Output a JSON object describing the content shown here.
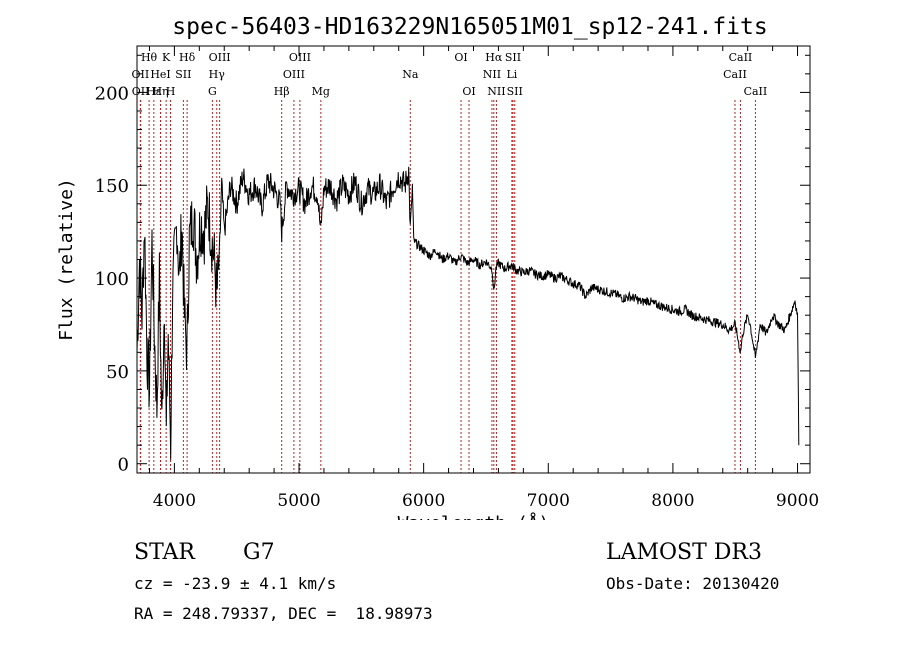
{
  "chart_data": {
    "type": "line",
    "title": "spec-56403-HD163229N165051M01_sp12-241.fits",
    "xlabel": "Wavelength (Å)",
    "ylabel": "Flux (relative)",
    "xlim": [
      3700,
      9100
    ],
    "ylim": [
      -5,
      225
    ],
    "x_ticks": [
      4000,
      5000,
      6000,
      7000,
      8000,
      9000
    ],
    "y_ticks": [
      0,
      50,
      100,
      150,
      200
    ],
    "grid": false,
    "line_color": "#000000",
    "marker_color": "#b22222",
    "series": [
      {
        "name": "spectrum",
        "points": [
          [
            3700,
            60
          ],
          [
            3720,
            110
          ],
          [
            3740,
            80
          ],
          [
            3760,
            130
          ],
          [
            3780,
            60
          ],
          [
            3800,
            40
          ],
          [
            3820,
            120
          ],
          [
            3840,
            70
          ],
          [
            3860,
            30
          ],
          [
            3880,
            100
          ],
          [
            3900,
            20
          ],
          [
            3920,
            90
          ],
          [
            3935,
            15
          ],
          [
            3950,
            70
          ],
          [
            3970,
            10
          ],
          [
            3985,
            90
          ],
          [
            4000,
            110
          ],
          [
            4020,
            130
          ],
          [
            4040,
            100
          ],
          [
            4060,
            130
          ],
          [
            4080,
            80
          ],
          [
            4101,
            60
          ],
          [
            4120,
            120
          ],
          [
            4150,
            135
          ],
          [
            4180,
            110
          ],
          [
            4210,
            130
          ],
          [
            4240,
            125
          ],
          [
            4270,
            140
          ],
          [
            4300,
            120
          ],
          [
            4320,
            110
          ],
          [
            4340,
            90
          ],
          [
            4360,
            110
          ],
          [
            4380,
            150
          ],
          [
            4400,
            125
          ],
          [
            4450,
            150
          ],
          [
            4500,
            140
          ],
          [
            4550,
            155
          ],
          [
            4600,
            145
          ],
          [
            4650,
            150
          ],
          [
            4700,
            138
          ],
          [
            4750,
            152
          ],
          [
            4800,
            148
          ],
          [
            4850,
            140
          ],
          [
            4861,
            125
          ],
          [
            4900,
            150
          ],
          [
            4950,
            145
          ],
          [
            5000,
            148
          ],
          [
            5050,
            140
          ],
          [
            5100,
            150
          ],
          [
            5150,
            145
          ],
          [
            5173,
            125
          ],
          [
            5200,
            148
          ],
          [
            5250,
            150
          ],
          [
            5300,
            142
          ],
          [
            5350,
            150
          ],
          [
            5400,
            145
          ],
          [
            5450,
            152
          ],
          [
            5500,
            140
          ],
          [
            5550,
            148
          ],
          [
            5600,
            145
          ],
          [
            5650,
            150
          ],
          [
            5700,
            140
          ],
          [
            5750,
            148
          ],
          [
            5800,
            155
          ],
          [
            5850,
            150
          ],
          [
            5880,
            158
          ],
          [
            5893,
            125
          ],
          [
            5910,
            150
          ],
          [
            5920,
            120
          ],
          [
            5950,
            118
          ],
          [
            6000,
            115
          ],
          [
            6050,
            112
          ],
          [
            6100,
            115
          ],
          [
            6150,
            110
          ],
          [
            6200,
            112
          ],
          [
            6250,
            108
          ],
          [
            6300,
            112
          ],
          [
            6350,
            108
          ],
          [
            6400,
            110
          ],
          [
            6450,
            107
          ],
          [
            6500,
            109
          ],
          [
            6550,
            105
          ],
          [
            6563,
            92
          ],
          [
            6580,
            105
          ],
          [
            6600,
            108
          ],
          [
            6650,
            105
          ],
          [
            6700,
            107
          ],
          [
            6750,
            104
          ],
          [
            6800,
            103
          ],
          [
            6850,
            104
          ],
          [
            6900,
            102
          ],
          [
            6950,
            101
          ],
          [
            7000,
            102
          ],
          [
            7050,
            100
          ],
          [
            7100,
            101
          ],
          [
            7150,
            99
          ],
          [
            7200,
            97
          ],
          [
            7250,
            96
          ],
          [
            7300,
            90
          ],
          [
            7350,
            95
          ],
          [
            7400,
            94
          ],
          [
            7450,
            93
          ],
          [
            7500,
            92
          ],
          [
            7550,
            91
          ],
          [
            7600,
            89
          ],
          [
            7650,
            90
          ],
          [
            7700,
            89
          ],
          [
            7750,
            87
          ],
          [
            7800,
            88
          ],
          [
            7850,
            86
          ],
          [
            7900,
            85
          ],
          [
            7950,
            84
          ],
          [
            8000,
            83
          ],
          [
            8050,
            82
          ],
          [
            8100,
            83
          ],
          [
            8150,
            80
          ],
          [
            8200,
            79
          ],
          [
            8250,
            78
          ],
          [
            8300,
            77
          ],
          [
            8350,
            76
          ],
          [
            8400,
            75
          ],
          [
            8450,
            72
          ],
          [
            8500,
            75
          ],
          [
            8542,
            60
          ],
          [
            8560,
            70
          ],
          [
            8600,
            80
          ],
          [
            8620,
            75
          ],
          [
            8662,
            57
          ],
          [
            8700,
            75
          ],
          [
            8750,
            70
          ],
          [
            8800,
            80
          ],
          [
            8850,
            75
          ],
          [
            8900,
            72
          ],
          [
            8950,
            82
          ],
          [
            8980,
            88
          ],
          [
            9000,
            80
          ],
          [
            9010,
            10
          ]
        ]
      }
    ],
    "line_markers": [
      {
        "label": "Hθ",
        "x": 3797,
        "row": 1
      },
      {
        "label": "OII",
        "x": 3727,
        "row": 2
      },
      {
        "label": "OII",
        "x": 3729,
        "row": 3
      },
      {
        "label": "Hε",
        "x": 3835,
        "row": 3
      },
      {
        "label": "Hη",
        "x": 3889,
        "row": 3
      },
      {
        "label": "HeI",
        "x": 3889,
        "row": 2
      },
      {
        "label": "K",
        "x": 3934,
        "row": 1
      },
      {
        "label": "SII",
        "x": 4072,
        "row": 2
      },
      {
        "label": "H",
        "x": 3969,
        "row": 3
      },
      {
        "label": "Hδ",
        "x": 4102,
        "row": 1
      },
      {
        "label": "OIII",
        "x": 4363,
        "row": 1
      },
      {
        "label": "Hγ",
        "x": 4340,
        "row": 2
      },
      {
        "label": "G",
        "x": 4305,
        "row": 3
      },
      {
        "label": "Hβ",
        "x": 4861,
        "row": 3
      },
      {
        "label": "OIII",
        "x": 5007,
        "row": 1
      },
      {
        "label": "OIII",
        "x": 4959,
        "row": 2
      },
      {
        "label": "Mg",
        "x": 5175,
        "row": 3
      },
      {
        "label": "Na",
        "x": 5893,
        "row": 2
      },
      {
        "label": "OI",
        "x": 6300,
        "row": 1
      },
      {
        "label": "OI",
        "x": 6364,
        "row": 3
      },
      {
        "label": "Hα",
        "x": 6563,
        "row": 1
      },
      {
        "label": "NII",
        "x": 6548,
        "row": 2
      },
      {
        "label": "NII",
        "x": 6584,
        "row": 3
      },
      {
        "label": "SII",
        "x": 6717,
        "row": 1
      },
      {
        "label": "Li",
        "x": 6708,
        "row": 2
      },
      {
        "label": "SII",
        "x": 6731,
        "row": 3
      },
      {
        "label": "CaII",
        "x": 8542,
        "row": 1
      },
      {
        "label": "CaII",
        "x": 8498,
        "row": 2
      },
      {
        "label": "CaII",
        "x": 8662,
        "row": 3
      }
    ]
  },
  "info": {
    "object_type": "STAR",
    "subclass": "G7",
    "survey": "LAMOST DR3",
    "redshift": "cz = -23.9 ± 4.1 km/s",
    "obs_date": "Obs-Date: 20130420",
    "coords": "RA = 248.79337, DEC =  18.98973"
  }
}
